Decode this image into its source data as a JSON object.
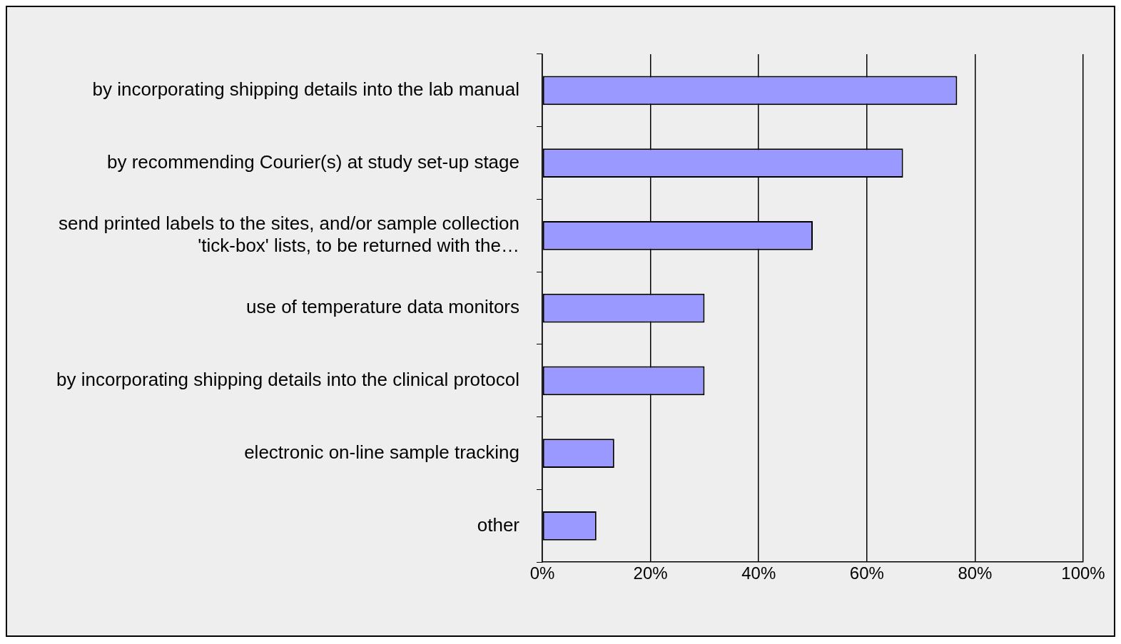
{
  "chart_data": {
    "type": "bar",
    "orientation": "horizontal",
    "categories": [
      "by incorporating shipping details into the lab manual",
      "by recommending Courier(s) at study set-up stage",
      "send printed labels to the sites, and/or sample collection 'tick-box' lists, to be returned with the…",
      "use of temperature data monitors",
      "by incorporating shipping details into the clinical protocol",
      "electronic on-line sample tracking",
      "other"
    ],
    "values": [
      76.7,
      66.7,
      50,
      30,
      30,
      13.3,
      10
    ],
    "color": "#9999ff",
    "xlim": [
      0,
      100
    ],
    "xticks": [
      {
        "value": 0,
        "label": "0%"
      },
      {
        "value": 20,
        "label": "20%"
      },
      {
        "value": 40,
        "label": "40%"
      },
      {
        "value": 60,
        "label": "60%"
      },
      {
        "value": 80,
        "label": "80%"
      },
      {
        "value": 100,
        "label": "100%"
      }
    ],
    "grid": "x",
    "legend": false
  }
}
